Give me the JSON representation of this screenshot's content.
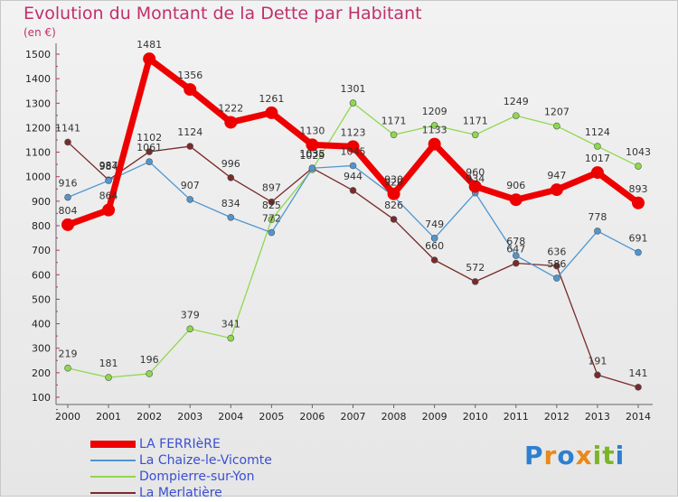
{
  "title": "Evolution du Montant de la Dette par Habitant",
  "subtitle": "(en €)",
  "logo": {
    "letters": [
      "P",
      "r",
      "o",
      "x",
      "i",
      "t",
      "i"
    ],
    "colors": [
      "#2d7fd1",
      "#e8891a",
      "#2d7fd1",
      "#e8891a",
      "#7ab528",
      "#7ab528",
      "#2d7fd1"
    ]
  },
  "chart_data": {
    "type": "line",
    "x": [
      "2000",
      "2001",
      "2002",
      "2003",
      "2004",
      "2005",
      "2006",
      "2007",
      "2008",
      "2009",
      "2010",
      "2011",
      "2012",
      "2013",
      "2014"
    ],
    "ylim": [
      100,
      1500
    ],
    "yticks": [
      100,
      200,
      300,
      400,
      500,
      600,
      700,
      800,
      900,
      1000,
      1100,
      1200,
      1300,
      1400,
      1500
    ],
    "grid": false,
    "legend_position": "bottom-left",
    "series": [
      {
        "name": "LA FERRIèRE",
        "color": "#ee0000",
        "values": [
          804,
          864,
          1481,
          1356,
          1222,
          1261,
          1130,
          1123,
          930,
          1133,
          960,
          906,
          947,
          1017,
          893
        ]
      },
      {
        "name": "La Chaize-le-Vicomte",
        "color": "#4f96cf",
        "values": [
          916,
          984,
          1061,
          907,
          834,
          772,
          1035,
          1045,
          920,
          749,
          934,
          678,
          586,
          778,
          691
        ]
      },
      {
        "name": "Dompierre-sur-Yon",
        "color": "#8fd84e",
        "values": [
          219,
          181,
          196,
          379,
          341,
          825,
          1029,
          1301,
          1171,
          1209,
          1171,
          1249,
          1207,
          1124,
          1043
        ]
      },
      {
        "name": "La Merlatière",
        "color": "#7a2a2a",
        "values": [
          1141,
          987,
          1102,
          1124,
          996,
          897,
          1035,
          944,
          826,
          660,
          572,
          647,
          636,
          191,
          141
        ]
      }
    ]
  }
}
